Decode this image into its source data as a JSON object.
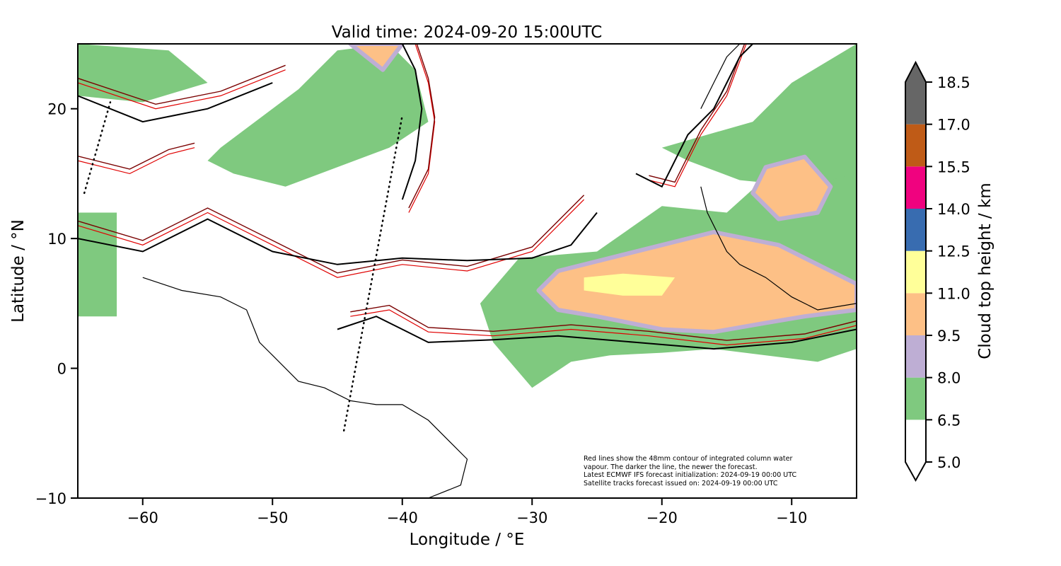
{
  "title": "Valid time: 2024-09-20 15:00UTC",
  "axes": {
    "xlabel": "Longitude / °E",
    "ylabel": "Latitude / °N",
    "xlim": [
      -65,
      -5
    ],
    "ylim": [
      -10,
      25
    ],
    "xticks": [
      -60,
      -50,
      -40,
      -30,
      -20,
      -10
    ],
    "yticks": [
      -10,
      0,
      10,
      20
    ],
    "xtick_labels": [
      "−60",
      "−50",
      "−40",
      "−30",
      "−20",
      "−10"
    ],
    "ytick_labels": [
      "−10",
      "0",
      "10",
      "20"
    ]
  },
  "colorbar": {
    "label": "Cloud top height / km",
    "extend": "both",
    "levels": [
      5.0,
      6.5,
      8.0,
      9.5,
      11.0,
      12.5,
      14.0,
      15.5,
      17.0,
      18.5
    ],
    "level_labels": [
      "5.0",
      "6.5",
      "8.0",
      "9.5",
      "11.0",
      "12.5",
      "14.0",
      "15.5",
      "17.0",
      "18.5"
    ],
    "colors": [
      "#ffffff",
      "#7fc97f",
      "#beaed4",
      "#fdc086",
      "#ffff99",
      "#386cb0",
      "#f0027f",
      "#bf5b17",
      "#666666"
    ]
  },
  "note_lines": [
    "Red lines show the 48mm contour of integrated column water",
    "vapour. The darker the line, the newer the forecast.",
    "Latest ECMWF IFS forecast initialization: 2024-09-19 00:00 UTC",
    "Satellite tracks forecast issued on: 2024-09-19 00:00 UTC"
  ],
  "satellite_tracks": [
    {
      "lon": [
        -64.5,
        -62.5
      ],
      "lat": [
        13.5,
        20.5
      ]
    },
    {
      "lon": [
        -44.5,
        -40.0
      ],
      "lat": [
        -4.8,
        19.5
      ]
    }
  ],
  "cloud_regions": [
    {
      "level": "6.5-8.0",
      "lon": [
        -31,
        -25,
        -20,
        -15,
        -10,
        -5,
        -5,
        -8,
        -12,
        -16,
        -20,
        -24,
        -27,
        -30,
        -33,
        -34
      ],
      "lat": [
        8.5,
        9,
        12.5,
        12,
        16.5,
        15.5,
        1.5,
        0.5,
        1.0,
        1.5,
        1.2,
        1.0,
        0.5,
        -1.5,
        2,
        5
      ]
    },
    {
      "level": "6.5-8.0",
      "lon": [
        -54,
        -48,
        -45,
        -41,
        -39,
        -38,
        -41,
        -45,
        -49,
        -53,
        -55
      ],
      "lat": [
        17,
        21.5,
        24.5,
        25,
        23,
        19,
        17,
        15.5,
        14,
        15,
        16
      ]
    },
    {
      "level": "6.5-8.0",
      "lon": [
        -65,
        -62,
        -62,
        -65
      ],
      "lat": [
        12,
        12,
        4,
        4
      ]
    },
    {
      "level": "6.5-8.0",
      "lon": [
        -65,
        -58,
        -55,
        -60,
        -65
      ],
      "lat": [
        25,
        24.5,
        22,
        20.5,
        21
      ]
    },
    {
      "level": "6.5-8.0",
      "lon": [
        -20,
        -13,
        -10,
        -5,
        -5,
        -9,
        -14,
        -18
      ],
      "lat": [
        17,
        19,
        22,
        25,
        15,
        14,
        14.5,
        16
      ]
    },
    {
      "level": "9.5-11.0",
      "lon": [
        -28,
        -20,
        -16,
        -11,
        -7,
        -5,
        -5,
        -9,
        -12,
        -16,
        -20,
        -25,
        -28,
        -29.5
      ],
      "lat": [
        7.5,
        9.5,
        10.5,
        9.5,
        7.5,
        6.5,
        4.5,
        4.0,
        3.5,
        2.8,
        3.0,
        4.0,
        4.5,
        6.0
      ]
    },
    {
      "level": "9.5-11.0",
      "lon": [
        -12,
        -9,
        -7,
        -8,
        -11,
        -13
      ],
      "lat": [
        15.5,
        16.3,
        14,
        12,
        11.5,
        13.5
      ]
    },
    {
      "level": "11.0-12.5",
      "lon": [
        -26,
        -23,
        -19,
        -20,
        -23,
        -26
      ],
      "lat": [
        7.0,
        7.3,
        7.0,
        5.6,
        5.6,
        6.0
      ]
    },
    {
      "level": "9.5-11.0",
      "lon": [
        -44,
        -40,
        -41.5
      ],
      "lat": [
        25,
        25,
        23
      ]
    }
  ],
  "coastlines": [
    {
      "lon": [
        -60,
        -57,
        -54,
        -52,
        -51,
        -50,
        -48,
        -46,
        -44,
        -42,
        -40,
        -38,
        -36,
        -35,
        -35.5,
        -38
      ],
      "lat": [
        7,
        6,
        5.5,
        4.5,
        2,
        1,
        -1,
        -1.5,
        -2.5,
        -2.8,
        -2.8,
        -4,
        -6,
        -7,
        -9,
        -10
      ]
    },
    {
      "lon": [
        -17,
        -16.5,
        -16,
        -15,
        -14,
        -12,
        -10,
        -8,
        -5
      ],
      "lat": [
        14,
        12,
        11,
        9,
        8,
        7,
        5.5,
        4.5,
        5
      ]
    },
    {
      "lon": [
        -17,
        -16,
        -15,
        -14
      ],
      "lat": [
        20,
        22,
        24,
        25
      ]
    }
  ],
  "contours": {
    "black": [
      {
        "lon": [
          -65,
          -60,
          -55,
          -50,
          -45,
          -40,
          -35,
          -30,
          -27,
          -25
        ],
        "lat": [
          10,
          9,
          11.5,
          9,
          8,
          8.5,
          8.3,
          8.5,
          9.5,
          12
        ]
      },
      {
        "lon": [
          -45,
          -42,
          -40,
          -38,
          -33,
          -28,
          -22,
          -16,
          -10,
          -5
        ],
        "lat": [
          3,
          4,
          3,
          2,
          2.2,
          2.5,
          2,
          1.5,
          2,
          3
        ]
      },
      {
        "lon": [
          -40,
          -39,
          -38.5,
          -39,
          -40
        ],
        "lat": [
          13,
          16,
          20,
          23,
          25
        ]
      },
      {
        "lon": [
          -22,
          -20,
          -18,
          -16,
          -15,
          -14,
          -13
        ],
        "lat": [
          15,
          14,
          18,
          20,
          22,
          24,
          25
        ]
      },
      {
        "lon": [
          -65,
          -60,
          -55,
          -50
        ],
        "lat": [
          21,
          19,
          20,
          22
        ]
      }
    ],
    "red": [
      {
        "lon": [
          -65,
          -60,
          -55,
          -50,
          -45,
          -40,
          -35,
          -30,
          -26
        ],
        "lat": [
          11,
          9.5,
          12,
          9.5,
          7,
          8,
          7.5,
          9,
          13
        ]
      },
      {
        "lon": [
          -44,
          -41,
          -38,
          -33,
          -27,
          -21,
          -15,
          -9,
          -5
        ],
        "lat": [
          4,
          4.5,
          2.8,
          2.5,
          3,
          2.5,
          1.8,
          2.3,
          3.3
        ]
      },
      {
        "lon": [
          -39.5,
          -38,
          -37.5,
          -38,
          -39
        ],
        "lat": [
          12,
          15,
          19,
          22,
          25
        ]
      },
      {
        "lon": [
          -21,
          -19,
          -17,
          -15,
          -13.5
        ],
        "lat": [
          14.5,
          14,
          18,
          21,
          25
        ]
      },
      {
        "lon": [
          -65,
          -59,
          -54,
          -49
        ],
        "lat": [
          22,
          20,
          21,
          23
        ]
      },
      {
        "lon": [
          -65,
          -61,
          -58,
          -56
        ],
        "lat": [
          16,
          15,
          16.5,
          17
        ]
      }
    ]
  }
}
